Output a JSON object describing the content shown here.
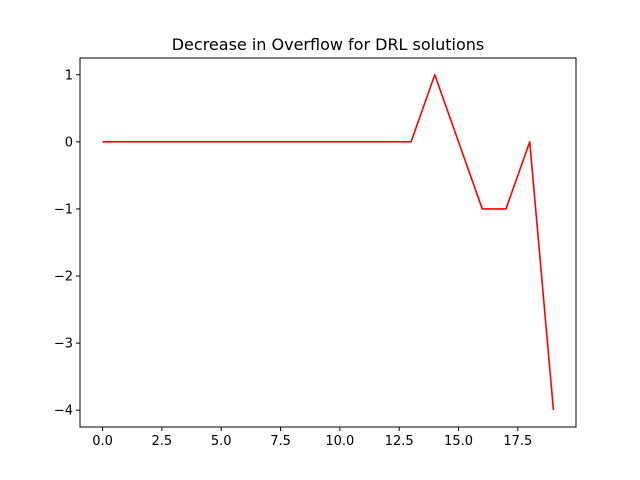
{
  "chart_data": {
    "type": "line",
    "title": "Decrease in Overflow for DRL solutions",
    "xlabel": "",
    "ylabel": "",
    "xlim": [
      -0.95,
      19.95
    ],
    "ylim": [
      -4.25,
      1.25
    ],
    "xticks": [
      0.0,
      2.5,
      5.0,
      7.5,
      10.0,
      12.5,
      15.0,
      17.5
    ],
    "xtick_labels": [
      "0.0",
      "2.5",
      "5.0",
      "7.5",
      "10.0",
      "12.5",
      "15.0",
      "17.5"
    ],
    "yticks": [
      1,
      0,
      -1,
      -2,
      -3,
      -4
    ],
    "ytick_labels": [
      "1",
      "0",
      "−1",
      "−2",
      "−3",
      "−4"
    ],
    "grid": false,
    "legend": "none",
    "series": [
      {
        "color": "#ff0000",
        "x": [
          0,
          1,
          2,
          3,
          4,
          5,
          6,
          7,
          8,
          9,
          10,
          11,
          12,
          13,
          14,
          15,
          16,
          17,
          18,
          19
        ],
        "values": [
          0,
          0,
          0,
          0,
          0,
          0,
          0,
          0,
          0,
          0,
          0,
          0,
          0,
          0,
          1,
          0,
          -1,
          -1,
          0,
          -4
        ]
      }
    ]
  }
}
